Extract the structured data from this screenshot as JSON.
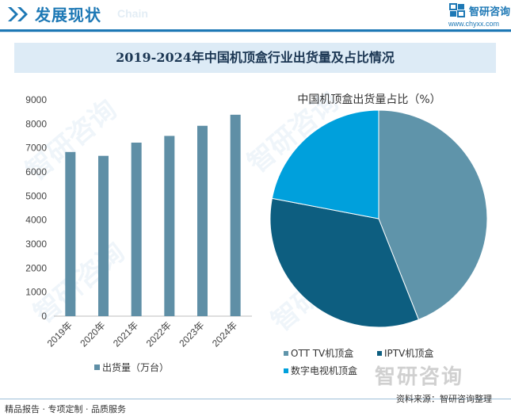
{
  "header": {
    "title": "发展现状",
    "subtitle_en": "Chain",
    "brand_name": "智研咨询",
    "brand_url": "www.chyxx.com"
  },
  "chart_title": "2019-2024年中国机顶盒行业出货量及占比情况",
  "colors": {
    "accent": "#1d78b5",
    "bar": "#5f8fa6",
    "pie_ott": "#5f94aa",
    "pie_iptv": "#0d5e80",
    "pie_digital": "#00a0dc"
  },
  "chart_data": [
    {
      "type": "bar",
      "categories": [
        "2019年",
        "2020年",
        "2021年",
        "2022年",
        "2023年",
        "2024年"
      ],
      "series": [
        {
          "name": "出货量（万台）",
          "values": [
            6830,
            6670,
            7220,
            7500,
            7920,
            8380
          ]
        }
      ],
      "ylim": [
        0,
        9000
      ],
      "yticks": [
        0,
        1000,
        2000,
        3000,
        4000,
        5000,
        6000,
        7000,
        8000,
        9000
      ],
      "xlabel": "",
      "ylabel": "",
      "legend_position": "bottom",
      "grid": false
    },
    {
      "type": "pie",
      "title": "中国机顶盒出货量占比（%）",
      "labels": [
        "OTT TV机顶盒",
        "IPTV机顶盒",
        "数字电视机顶盒"
      ],
      "values": [
        44,
        34,
        22
      ],
      "legend_position": "bottom"
    }
  ],
  "footer": {
    "left": "精品报告 · 专项定制 · 品质服务",
    "source": "资料来源：智研咨询整理"
  },
  "watermark": "智研咨询"
}
